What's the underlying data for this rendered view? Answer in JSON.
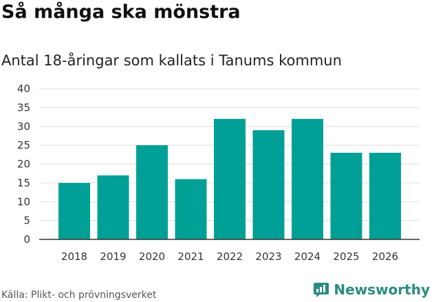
{
  "header": {
    "title": "Så många ska mönstra",
    "subtitle": "Antal 18-åringar som kallats i Tanums kommun"
  },
  "footer": {
    "source": "Källa: Plikt- och prövningsverket",
    "brand": "Newsworthy",
    "brand_icon": "bar-chart-speech-bubble-icon"
  },
  "colors": {
    "bar": "#00a096",
    "brand": "#2a8c80",
    "grid": "#dddddd"
  },
  "chart_data": {
    "type": "bar",
    "categories": [
      "2018",
      "2019",
      "2020",
      "2021",
      "2022",
      "2023",
      "2024",
      "2025",
      "2026"
    ],
    "values": [
      15,
      17,
      25,
      16,
      32,
      29,
      32,
      23,
      23
    ],
    "ylim": [
      0,
      40
    ],
    "yticks": [
      0,
      5,
      10,
      15,
      20,
      25,
      30,
      35,
      40
    ],
    "grid": true,
    "xlabel": "",
    "ylabel": ""
  }
}
